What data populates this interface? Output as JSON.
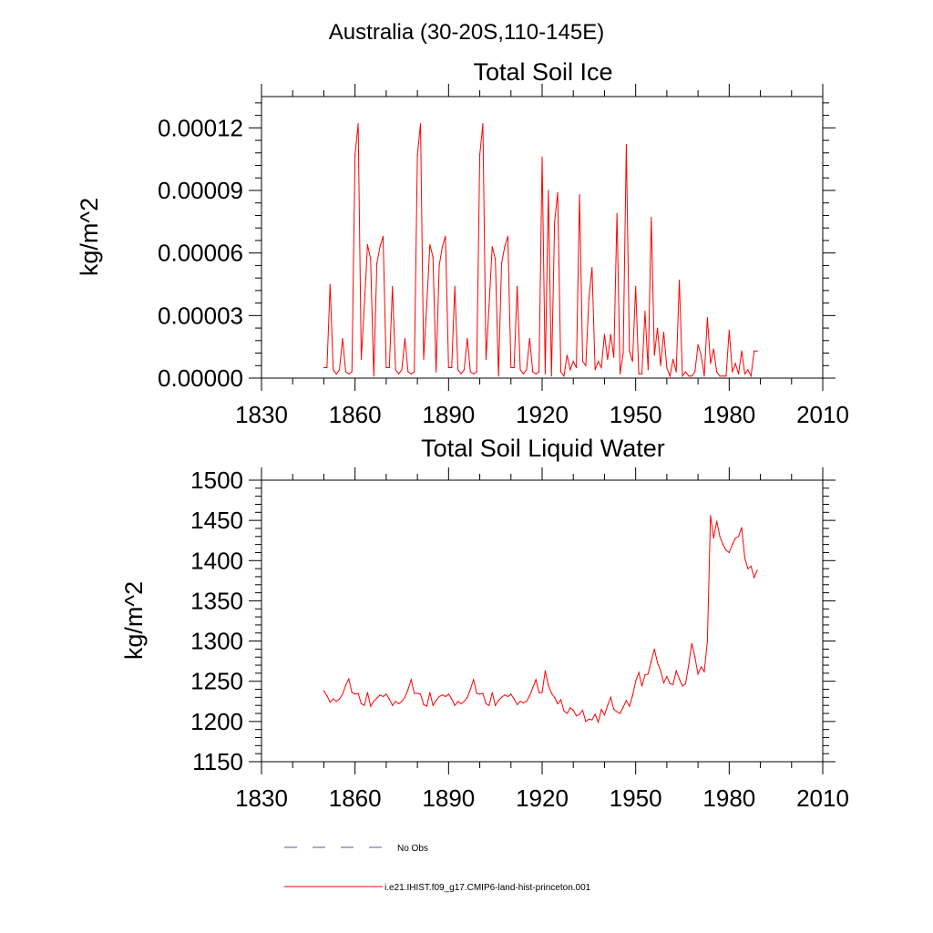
{
  "page_title": "Australia (30-20S,110-145E)",
  "legend": [
    {
      "label": "No Obs",
      "color": "#5a5a8c",
      "style": "dashed"
    },
    {
      "label": "i.e21.IHIST.f09_g17.CMIP6-land-hist-princeton.001",
      "color": "#ff0000",
      "style": "solid"
    }
  ],
  "chart_data": [
    {
      "type": "line",
      "title": "Total Soil Ice",
      "xlabel": "",
      "ylabel": "kg/m^2",
      "xlim": [
        1830,
        2010
      ],
      "ylim": [
        0,
        0.000135
      ],
      "grid": false,
      "x_ticks": [
        "1830",
        "1860",
        "1890",
        "1920",
        "1950",
        "1980",
        "2010"
      ],
      "y_ticks": [
        "0.00000",
        "0.00003",
        "0.00006",
        "0.00009",
        "0.00012"
      ],
      "y_tick_values": [
        0,
        3e-05,
        6e-05,
        9e-05,
        0.00012
      ],
      "series": [
        {
          "name": "i.e21.IHIST.f09_g17.CMIP6-land-hist-princeton.001",
          "color": "#ff0000",
          "x": [
            1850,
            1851,
            1852,
            1853,
            1854,
            1855,
            1856,
            1857,
            1858,
            1859,
            1860,
            1861,
            1862,
            1863,
            1864,
            1865,
            1866,
            1867,
            1868,
            1869,
            1870,
            1871,
            1872,
            1873,
            1874,
            1875,
            1876,
            1877,
            1878,
            1879,
            1880,
            1881,
            1882,
            1883,
            1884,
            1885,
            1886,
            1887,
            1888,
            1889,
            1890,
            1891,
            1892,
            1893,
            1894,
            1895,
            1896,
            1897,
            1898,
            1899,
            1900,
            1901,
            1902,
            1903,
            1904,
            1905,
            1906,
            1907,
            1908,
            1909,
            1910,
            1911,
            1912,
            1913,
            1914,
            1915,
            1916,
            1917,
            1918,
            1919,
            1920,
            1921,
            1922,
            1923,
            1924,
            1925,
            1926,
            1927,
            1928,
            1929,
            1930,
            1931,
            1932,
            1933,
            1934,
            1935,
            1936,
            1937,
            1938,
            1939,
            1940,
            1941,
            1942,
            1943,
            1944,
            1945,
            1946,
            1947,
            1948,
            1949,
            1950,
            1951,
            1952,
            1953,
            1954,
            1955,
            1956,
            1957,
            1958,
            1959,
            1960,
            1961,
            1962,
            1963,
            1964,
            1965,
            1966,
            1967,
            1968,
            1969,
            1970,
            1971,
            1972,
            1973,
            1974,
            1975,
            1976,
            1977,
            1978,
            1979,
            1980,
            1981,
            1982,
            1983,
            1984,
            1985,
            1986,
            1987,
            1988,
            1989
          ],
          "values": [
            5e-06,
            5e-06,
            4.5e-05,
            4e-06,
            2e-06,
            4e-06,
            1.9e-05,
            3e-06,
            2e-06,
            3e-06,
            0.000107,
            0.000122,
            9e-06,
            3.5e-05,
            6.4e-05,
            5.7e-05,
            1e-06,
            5.5e-05,
            6.3e-05,
            6.8e-05,
            5e-06,
            5e-06,
            4.4e-05,
            4e-06,
            2e-06,
            4e-06,
            1.9e-05,
            3e-06,
            2e-06,
            3e-06,
            0.000107,
            0.000122,
            9e-06,
            3.5e-05,
            6.4e-05,
            5.8e-05,
            3e-06,
            5.4e-05,
            6.3e-05,
            6.8e-05,
            5e-06,
            5e-06,
            4.4e-05,
            4e-06,
            2e-06,
            4e-06,
            1.9e-05,
            3e-06,
            2e-06,
            3e-06,
            0.000107,
            0.000122,
            9e-06,
            3.5e-05,
            6.3e-05,
            5.7e-05,
            1e-06,
            5.5e-05,
            6.3e-05,
            6.8e-05,
            5e-06,
            5e-06,
            4.4e-05,
            4e-06,
            2e-06,
            4e-06,
            1.9e-05,
            3e-06,
            2e-06,
            3e-06,
            0.000106,
            2e-06,
            9e-05,
            1e-06,
            7.5e-05,
            8.9e-05,
            3e-06,
            1e-06,
            1.1e-05,
            4e-06,
            8e-06,
            5e-06,
            8.8e-05,
            8e-06,
            6e-06,
            3.8e-05,
            5.3e-05,
            4e-06,
            8e-06,
            5e-06,
            2.1e-05,
            9e-06,
            2.1e-05,
            1e-05,
            7.9e-05,
            2e-06,
            1.2e-05,
            0.000112,
            1.3e-05,
            8e-06,
            4.4e-05,
            2e-06,
            2e-06,
            3.2e-05,
            4e-06,
            7.7e-05,
            1.1e-05,
            2.4e-05,
            6e-06,
            2.2e-05,
            5e-06,
            1e-06,
            9e-06,
            3e-06,
            4.7e-05,
            1e-06,
            3e-06,
            1e-06,
            1e-06,
            3e-06,
            1.6e-05,
            1.1e-05,
            1e-06,
            2.9e-05,
            7e-06,
            1.4e-05,
            3e-06,
            1e-06,
            1e-06,
            1e-06,
            2.3e-05,
            3e-06,
            7e-06,
            2e-06,
            1.3e-05,
            2e-06,
            4e-06,
            1e-06,
            1.3e-05,
            1.3e-05
          ]
        }
      ]
    },
    {
      "type": "line",
      "title": "Total Soil Liquid Water",
      "xlabel": "",
      "ylabel": "kg/m^2",
      "xlim": [
        1830,
        2010
      ],
      "ylim": [
        1150,
        1500
      ],
      "grid": false,
      "x_ticks": [
        "1830",
        "1860",
        "1890",
        "1920",
        "1950",
        "1980",
        "2010"
      ],
      "y_ticks": [
        "1150",
        "1200",
        "1250",
        "1300",
        "1350",
        "1400",
        "1450",
        "1500"
      ],
      "y_tick_values": [
        1150,
        1200,
        1250,
        1300,
        1350,
        1400,
        1450,
        1500
      ],
      "series": [
        {
          "name": "i.e21.IHIST.f09_g17.CMIP6-land-hist-princeton.001",
          "color": "#ff0000",
          "x": [
            1850,
            1851,
            1852,
            1853,
            1854,
            1855,
            1856,
            1857,
            1858,
            1859,
            1860,
            1861,
            1862,
            1863,
            1864,
            1865,
            1866,
            1867,
            1868,
            1869,
            1870,
            1871,
            1872,
            1873,
            1874,
            1875,
            1876,
            1877,
            1878,
            1879,
            1880,
            1881,
            1882,
            1883,
            1884,
            1885,
            1886,
            1887,
            1888,
            1889,
            1890,
            1891,
            1892,
            1893,
            1894,
            1895,
            1896,
            1897,
            1898,
            1899,
            1900,
            1901,
            1902,
            1903,
            1904,
            1905,
            1906,
            1907,
            1908,
            1909,
            1910,
            1911,
            1912,
            1913,
            1914,
            1915,
            1916,
            1917,
            1918,
            1919,
            1920,
            1921,
            1922,
            1923,
            1924,
            1925,
            1926,
            1927,
            1928,
            1929,
            1930,
            1931,
            1932,
            1933,
            1934,
            1935,
            1936,
            1937,
            1938,
            1939,
            1940,
            1941,
            1942,
            1943,
            1944,
            1945,
            1946,
            1947,
            1948,
            1949,
            1950,
            1951,
            1952,
            1953,
            1954,
            1955,
            1956,
            1957,
            1958,
            1959,
            1960,
            1961,
            1962,
            1963,
            1964,
            1965,
            1966,
            1967,
            1968,
            1969,
            1970,
            1971,
            1972,
            1973,
            1974,
            1975,
            1976,
            1977,
            1978,
            1979,
            1980,
            1981,
            1982,
            1983,
            1984,
            1985,
            1986,
            1987,
            1988,
            1989
          ],
          "values": [
            1238,
            1232,
            1224,
            1228,
            1225,
            1228,
            1234,
            1245,
            1253,
            1236,
            1234,
            1235,
            1222,
            1220,
            1236,
            1219,
            1225,
            1229,
            1233,
            1231,
            1234,
            1228,
            1220,
            1225,
            1222,
            1225,
            1230,
            1240,
            1252,
            1235,
            1235,
            1234,
            1221,
            1219,
            1236,
            1220,
            1226,
            1231,
            1233,
            1231,
            1234,
            1228,
            1220,
            1225,
            1222,
            1225,
            1230,
            1240,
            1252,
            1235,
            1234,
            1235,
            1222,
            1220,
            1236,
            1220,
            1226,
            1230,
            1233,
            1231,
            1234,
            1228,
            1221,
            1225,
            1223,
            1225,
            1232,
            1242,
            1252,
            1236,
            1236,
            1263,
            1245,
            1235,
            1230,
            1222,
            1227,
            1213,
            1210,
            1217,
            1214,
            1207,
            1209,
            1214,
            1200,
            1203,
            1202,
            1209,
            1199,
            1215,
            1208,
            1220,
            1230,
            1215,
            1212,
            1210,
            1218,
            1226,
            1219,
            1232,
            1250,
            1261,
            1244,
            1258,
            1259,
            1275,
            1290,
            1273,
            1263,
            1248,
            1256,
            1247,
            1246,
            1263,
            1253,
            1244,
            1247,
            1270,
            1297,
            1280,
            1259,
            1268,
            1262,
            1300,
            1456,
            1428,
            1449,
            1430,
            1420,
            1413,
            1410,
            1420,
            1428,
            1430,
            1441,
            1403,
            1390,
            1393,
            1379,
            1388
          ]
        }
      ]
    }
  ]
}
